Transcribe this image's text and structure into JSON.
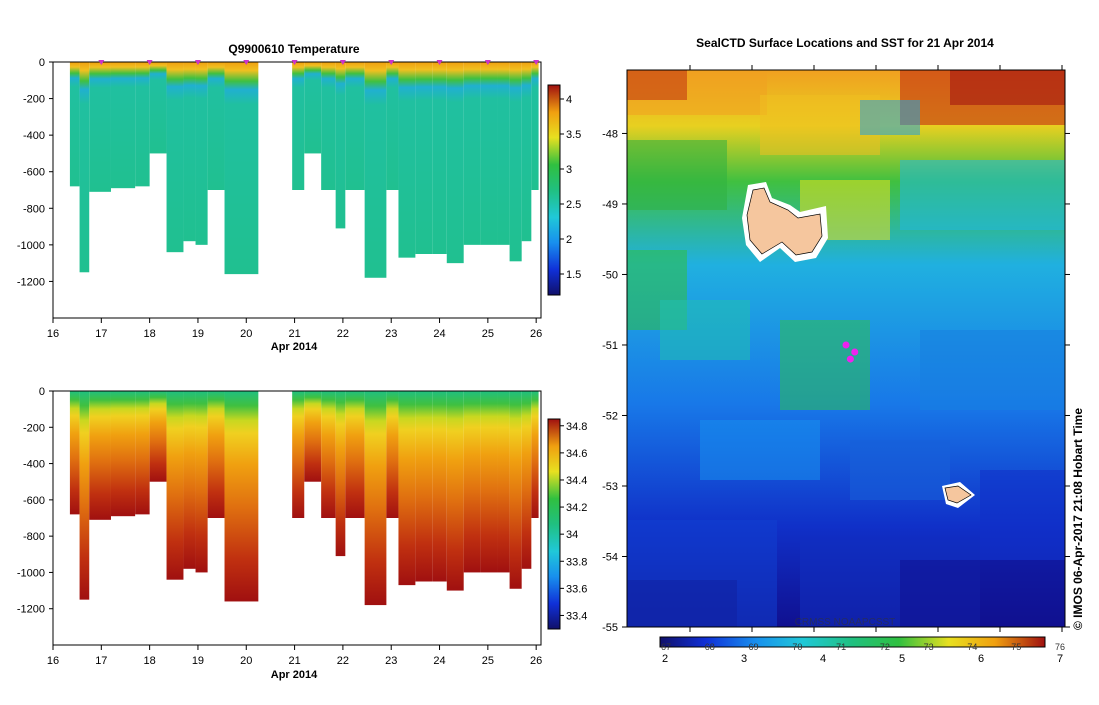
{
  "chart_data": [
    {
      "type": "heatmap",
      "title": "Q9900610  Temperature",
      "variable": "temperature",
      "xlabel": "Apr 2014",
      "xlim": [
        16,
        26.1
      ],
      "ylim": [
        -1400,
        0
      ],
      "x_ticks": [
        16,
        17,
        18,
        19,
        20,
        21,
        22,
        23,
        24,
        25,
        26
      ],
      "y_ticks": [
        0,
        -200,
        -400,
        -600,
        -800,
        -1000,
        -1200
      ],
      "y_tick_labels": [
        "0",
        "-200",
        "-400",
        "-600",
        "-800",
        "-1000",
        "-1200"
      ],
      "colorbar_range": [
        1.2,
        4.2
      ],
      "colorbar_ticks": [
        "4",
        "3.5",
        "3",
        "2.5",
        "2",
        "1.5"
      ],
      "colorbar_values": [
        4,
        3.5,
        3,
        2.5,
        2,
        1.5
      ],
      "profile_markers_day": [
        17,
        18,
        19,
        20,
        21,
        22,
        23,
        24,
        25,
        26
      ]
    },
    {
      "type": "heatmap",
      "title": "",
      "variable": "salinity",
      "xlabel": "Apr 2014",
      "xlim": [
        16,
        26.1
      ],
      "ylim": [
        -1400,
        0
      ],
      "x_ticks": [
        16,
        17,
        18,
        19,
        20,
        21,
        22,
        23,
        24,
        25,
        26
      ],
      "y_ticks": [
        0,
        -200,
        -400,
        -600,
        -800,
        -1000,
        -1200
      ],
      "y_tick_labels": [
        "0",
        "-200",
        "-400",
        "-600",
        "-800",
        "-1000",
        "-1200"
      ],
      "colorbar_range": [
        33.3,
        34.85
      ],
      "colorbar_ticks": [
        "34.8",
        "34.6",
        "34.4",
        "34.2",
        "34",
        "33.8",
        "33.6",
        "33.4"
      ],
      "colorbar_values": [
        34.8,
        34.6,
        34.4,
        34.2,
        34,
        33.8,
        33.6,
        33.4
      ]
    },
    {
      "type": "heatmap",
      "title": "SealCTD Surface Locations and SST for 21 Apr 2014",
      "variable": "sea surface temperature map",
      "ylim": [
        -55,
        -47.1
      ],
      "y_ticks": [
        -48,
        -49,
        -50,
        -51,
        -52,
        -53,
        -54,
        -55
      ],
      "y_tick_labels": [
        "-48",
        "-49",
        "-50",
        "-51",
        "-52",
        "-53",
        "-54",
        "-55"
      ],
      "colorbar_ticks_celsius": [
        "2",
        "3",
        "4",
        "5",
        "6",
        "7"
      ],
      "colorbar_ticks_fahrenheit": [
        "67",
        "68",
        "69",
        "70",
        "71",
        "72",
        "73",
        "74",
        "75",
        "76"
      ],
      "overlay_text": "CRMSS NOAAPCSST",
      "seal_locations": [
        [
          -51.0,
          0.5
        ],
        [
          -51.1,
          0.52
        ],
        [
          -51.2,
          0.51
        ]
      ],
      "credit": "© IMOS 06-Apr-2017 21:08 Hobart Time"
    }
  ]
}
